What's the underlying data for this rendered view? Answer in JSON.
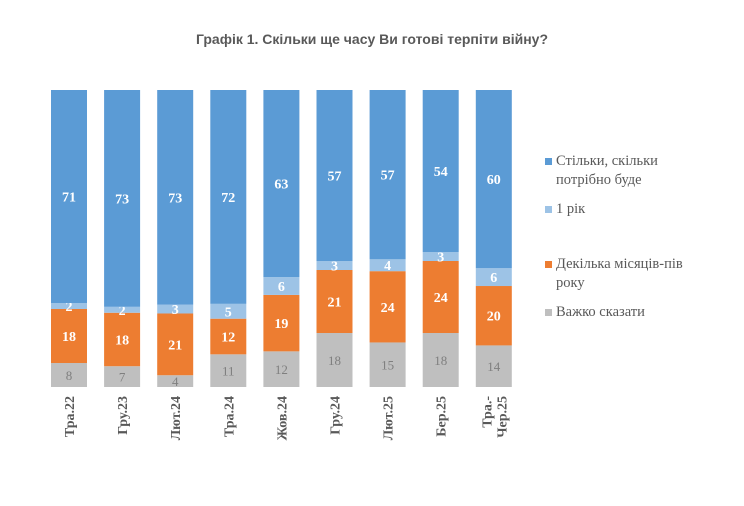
{
  "chart_data": {
    "type": "bar",
    "stacked": true,
    "percent": true,
    "title": "Графік 1. Скільки ще часу Ви готові терпіти війну?",
    "xlabel": "",
    "ylabel": "",
    "ylim": [
      0,
      100
    ],
    "grid": false,
    "legend_position": "right",
    "categories": [
      "Тра.22",
      "Гру.23",
      "Лют.24",
      "Тра.24",
      "Жов.24",
      "Гру.24",
      "Лют.25",
      "Бер.25",
      "Тра.-\nЧер.25"
    ],
    "category_lines": [
      [
        "Тра.22"
      ],
      [
        "Гру.23"
      ],
      [
        "Лют.24"
      ],
      [
        "Тра.24"
      ],
      [
        "Жов.24"
      ],
      [
        "Гру.24"
      ],
      [
        "Лют.25"
      ],
      [
        "Бер.25"
      ],
      [
        "Тра.-",
        "Чер.25"
      ]
    ],
    "series": [
      {
        "name": "Важко сказати",
        "color": "#BFBFBF",
        "label_color": "#7F7F7F",
        "values": [
          8,
          7,
          4,
          11,
          12,
          18,
          15,
          18,
          14
        ]
      },
      {
        "name": "Декілька місяців-пів року",
        "color": "#ED7D31",
        "label_color": "#FFFFFF",
        "values": [
          18,
          18,
          21,
          12,
          19,
          21,
          24,
          24,
          20
        ]
      },
      {
        "name": "1 рік",
        "color": "#9DC3E6",
        "label_color": "#FFFFFF",
        "values": [
          2,
          2,
          3,
          5,
          6,
          3,
          4,
          3,
          6
        ]
      },
      {
        "name": "Стільки, скільки потрібно буде",
        "color": "#5B9BD5",
        "label_color": "#FFFFFF",
        "values": [
          71,
          73,
          73,
          72,
          63,
          57,
          57,
          54,
          60
        ]
      }
    ],
    "legend": [
      {
        "lines": [
          "Стільки, скільки",
          "потрібно буде"
        ],
        "color": "#5B9BD5"
      },
      {
        "lines": [
          "1 рік"
        ],
        "color": "#9DC3E6"
      },
      {
        "lines": [
          "Декілька місяців-пів",
          "року"
        ],
        "color": "#ED7D31"
      },
      {
        "lines": [
          "Важко сказати"
        ],
        "color": "#BFBFBF"
      }
    ]
  }
}
